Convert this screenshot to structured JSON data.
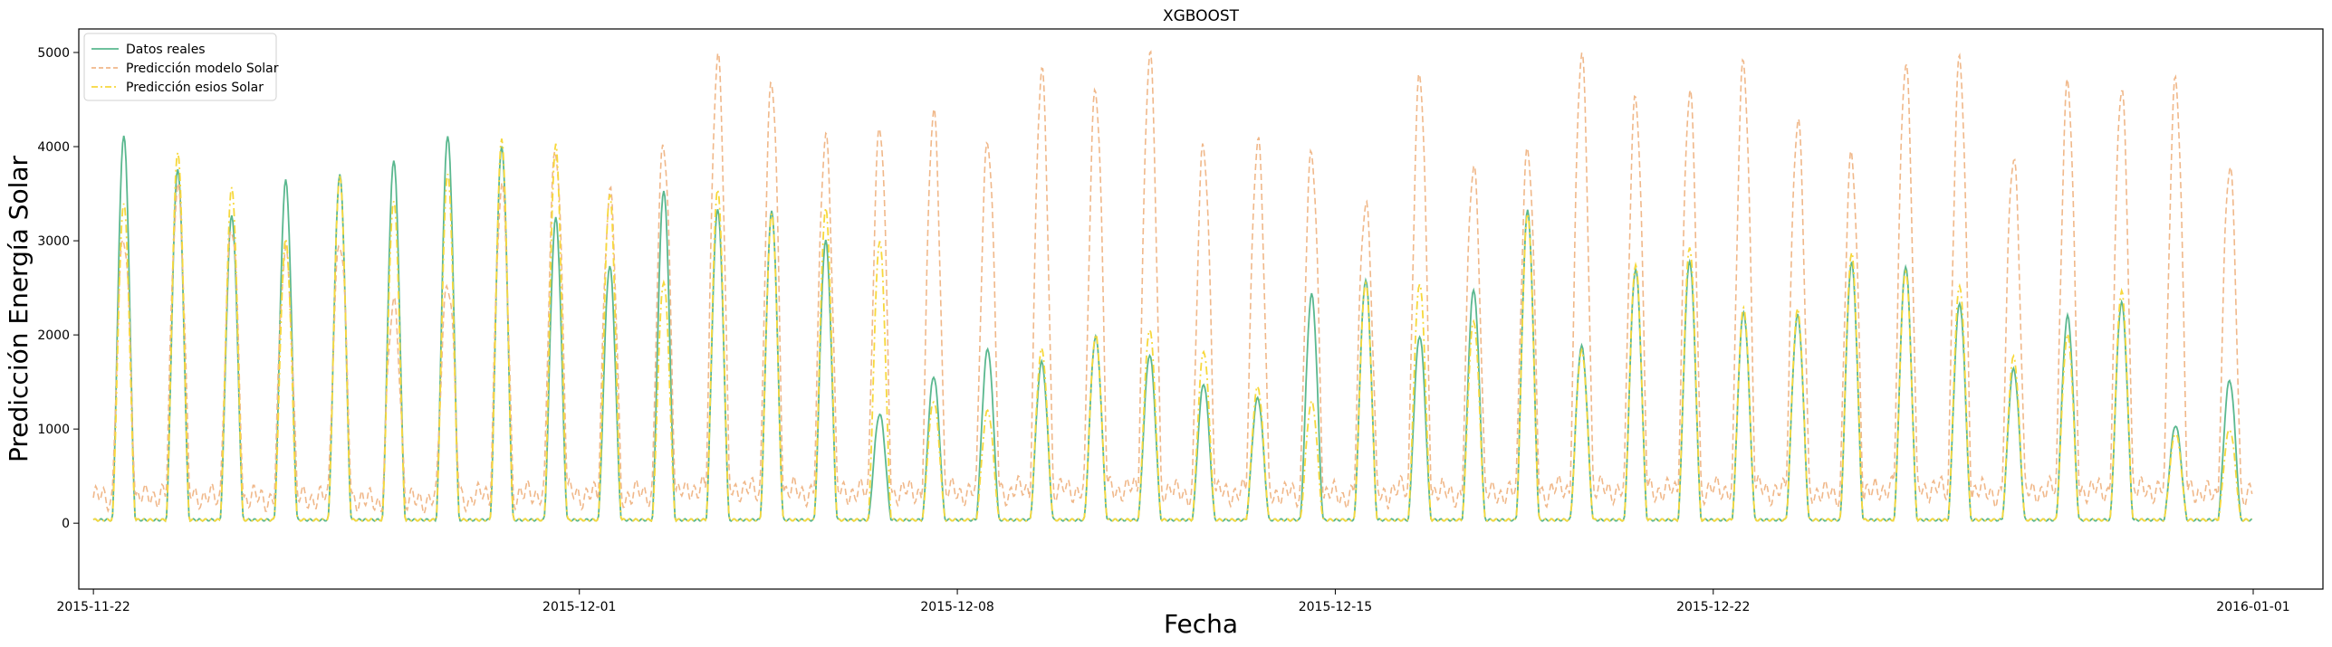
{
  "chart_data": {
    "type": "line",
    "title": "XGBOOST",
    "xlabel": "Fecha",
    "ylabel": "Predicción Energía Solar",
    "xlim": [
      "2015-11-21T17:30",
      "2016-01-02T07:00"
    ],
    "ylim": [
      -700,
      5250
    ],
    "x_ticks": [
      "2015-11-22",
      "2015-12-01",
      "2015-12-08",
      "2015-12-15",
      "2015-12-22",
      "2016-01-01"
    ],
    "y_ticks": [
      0,
      1000,
      2000,
      3000,
      4000,
      5000
    ],
    "grid": false,
    "legend_position": "top-left",
    "peak_hour": 13.5,
    "series": [
      {
        "name": "Datos reales",
        "color": "#5ab88f",
        "style": "solid",
        "start_date": "2015-11-22",
        "daily_peaks": [
          4120,
          3770,
          3270,
          3640,
          3700,
          3860,
          4120,
          4000,
          3240,
          2730,
          3540,
          3340,
          3310,
          3000,
          1160,
          1560,
          1850,
          1710,
          1980,
          1790,
          1480,
          1330,
          2430,
          2580,
          1990,
          2480,
          3320,
          1880,
          2700,
          2790,
          2240,
          2210,
          2770,
          2730,
          2340,
          1640,
          2200,
          2350,
          1040,
          1520
        ]
      },
      {
        "name": "Predicción modelo Solar",
        "color": "#f0b88a",
        "style": "dashed",
        "start_date": "2015-11-22",
        "daily_peaks": [
          3000,
          3600,
          3100,
          2900,
          3000,
          2300,
          2600,
          3500,
          4000,
          3500,
          4000,
          5000,
          4650,
          4150,
          4200,
          4350,
          4100,
          4750,
          4650,
          4950,
          4000,
          4100,
          3880,
          3450,
          4730,
          3800,
          4000,
          4950,
          4570,
          4550,
          4900,
          4300,
          3860,
          4950,
          4880,
          3920,
          4680,
          4600,
          4750,
          3750
        ]
      },
      {
        "name": "Predicción esios Solar",
        "color": "#f7d83c",
        "style": "dashdot",
        "start_date": "2015-11-22",
        "daily_peaks": [
          3400,
          3950,
          3570,
          3010,
          3680,
          3430,
          3720,
          4080,
          4020,
          3490,
          2570,
          3550,
          3280,
          3340,
          3000,
          1300,
          1200,
          1850,
          2000,
          2060,
          1830,
          1450,
          1290,
          2550,
          2550,
          2150,
          3280,
          1830,
          2750,
          2940,
          2290,
          2270,
          2870,
          2680,
          2530,
          1770,
          2000,
          2470,
          960,
          1000
        ]
      }
    ]
  }
}
